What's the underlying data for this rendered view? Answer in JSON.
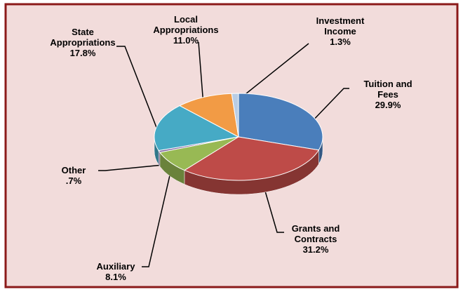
{
  "chart_data": {
    "type": "pie",
    "categories": [
      "Tuition and Fees",
      "Grants and Contracts",
      "Auxiliary",
      "Other",
      "State Appropriations",
      "Local Appropriations",
      "Investment Income"
    ],
    "values": [
      29.9,
      31.2,
      8.1,
      0.7,
      17.8,
      11.0,
      1.3
    ],
    "value_labels": [
      "29.9%",
      "31.2%",
      "8.1%",
      ".7%",
      "17.8%",
      "11.0%",
      "1.3%"
    ],
    "colors": [
      "#4a7ebb",
      "#be4b48",
      "#98b954",
      "#7d60a0",
      "#46aac5",
      "#f29b45",
      "#b9cde5"
    ],
    "three_d": true
  }
}
